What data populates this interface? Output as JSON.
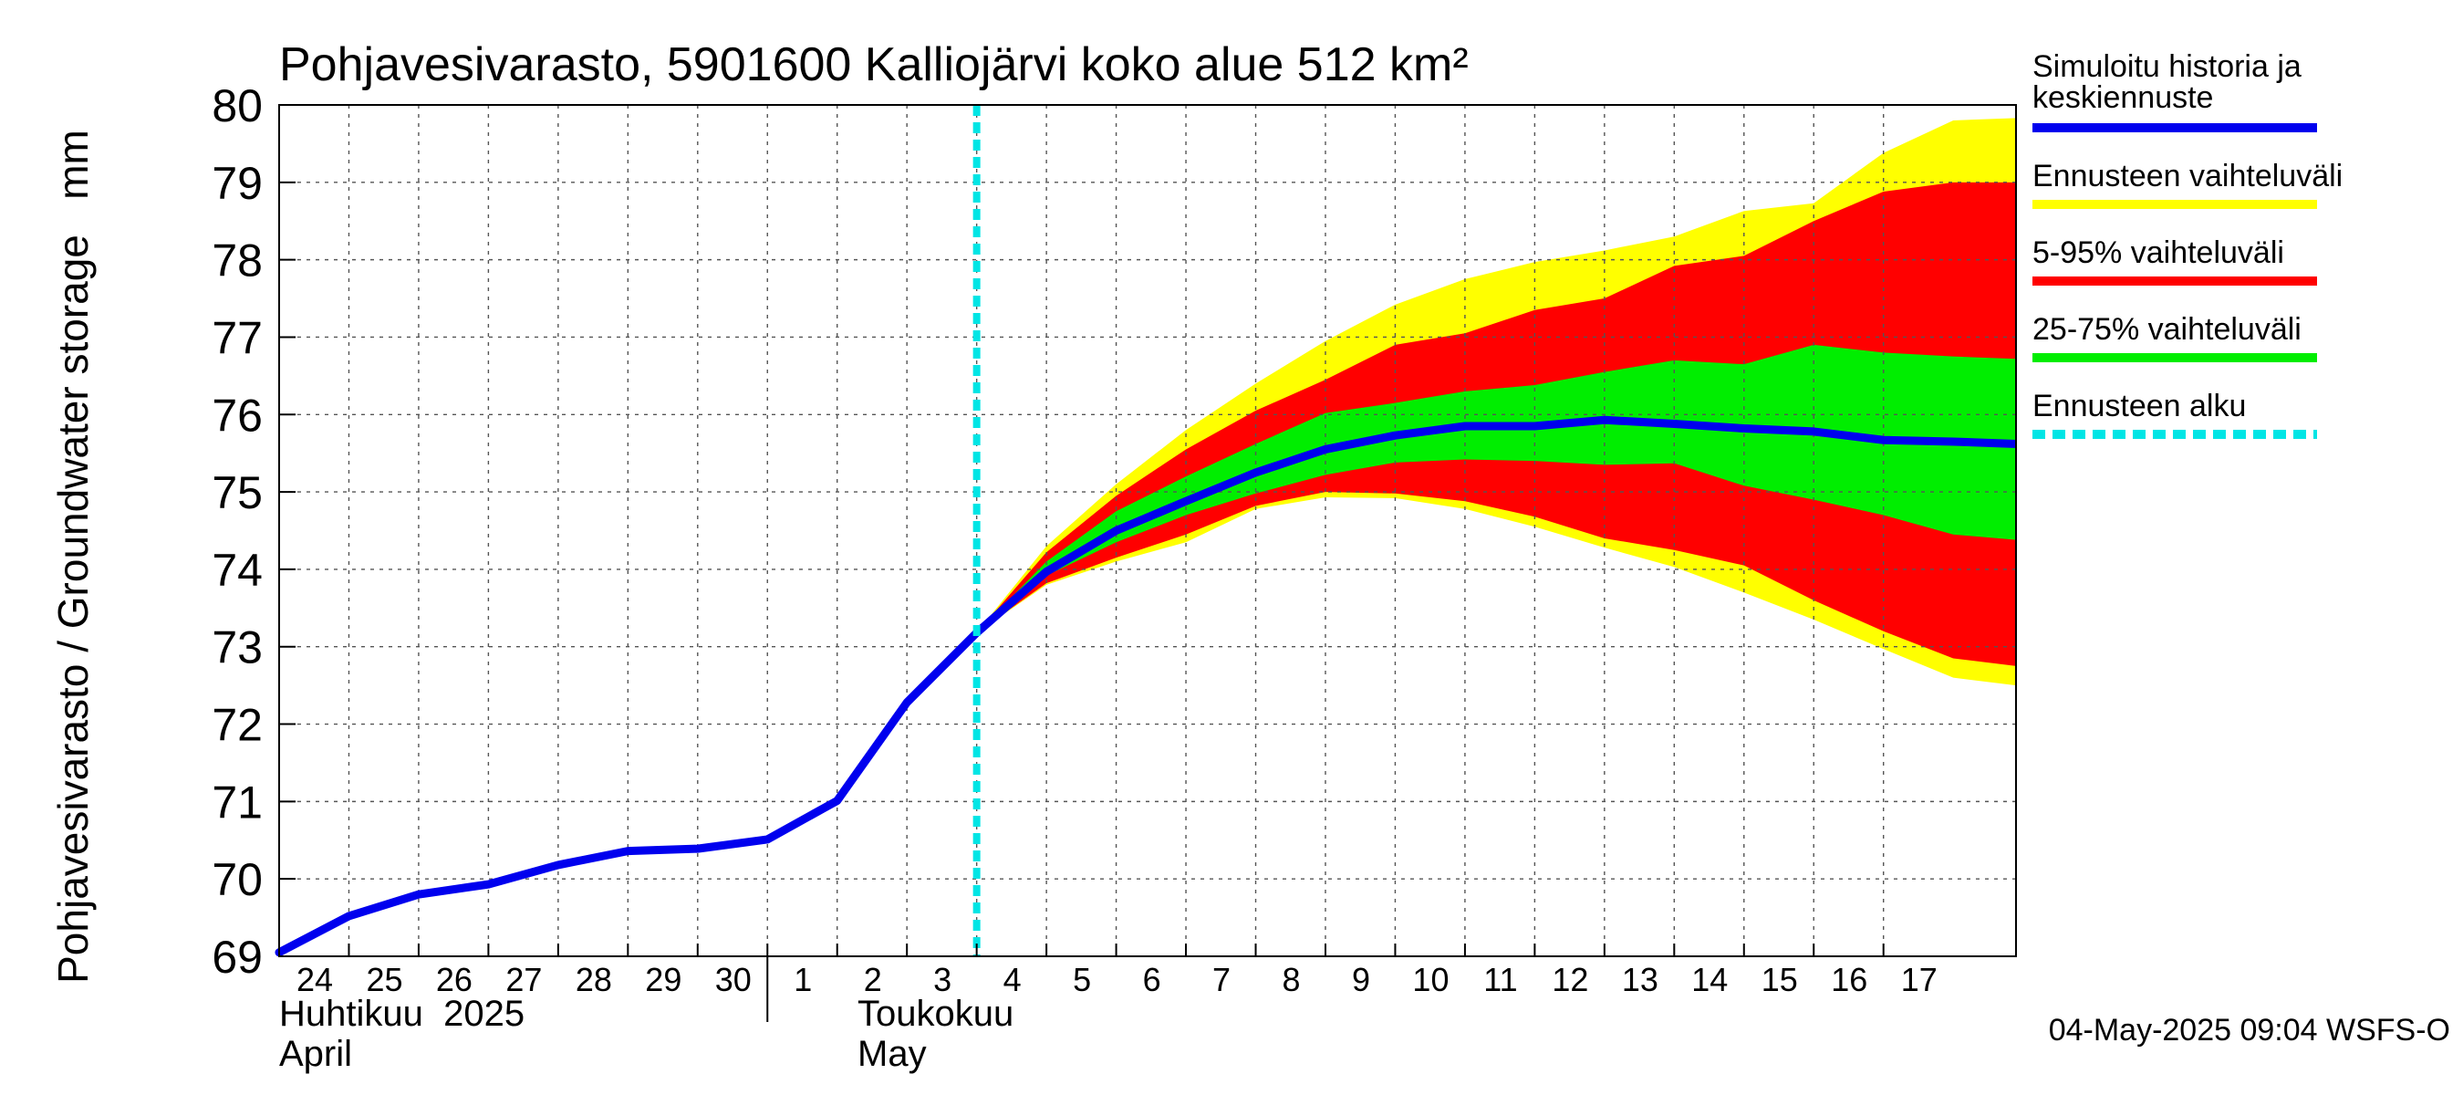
{
  "chart_data": {
    "type": "area",
    "title": "Pohjavesivarasto, 5901600 Kalliojärvi koko alue 512 km²",
    "ylabel": "Pohjavesivarasto / Groundwater storage   mm",
    "ylim": [
      69,
      80
    ],
    "yticks": [
      69,
      70,
      71,
      72,
      73,
      74,
      75,
      76,
      77,
      78,
      79,
      80
    ],
    "x_range_days": [
      0,
      24.9
    ],
    "x_ticks": [
      {
        "d": 0,
        "label": "24"
      },
      {
        "d": 1,
        "label": "25"
      },
      {
        "d": 2,
        "label": "26"
      },
      {
        "d": 3,
        "label": "27"
      },
      {
        "d": 4,
        "label": "28"
      },
      {
        "d": 5,
        "label": "29"
      },
      {
        "d": 6,
        "label": "30"
      },
      {
        "d": 7,
        "label": "1"
      },
      {
        "d": 8,
        "label": "2"
      },
      {
        "d": 9,
        "label": "3"
      },
      {
        "d": 10,
        "label": "4"
      },
      {
        "d": 11,
        "label": "5"
      },
      {
        "d": 12,
        "label": "6"
      },
      {
        "d": 13,
        "label": "7"
      },
      {
        "d": 14,
        "label": "8"
      },
      {
        "d": 15,
        "label": "9"
      },
      {
        "d": 16,
        "label": "10"
      },
      {
        "d": 17,
        "label": "11"
      },
      {
        "d": 18,
        "label": "12"
      },
      {
        "d": 19,
        "label": "13"
      },
      {
        "d": 20,
        "label": "14"
      },
      {
        "d": 21,
        "label": "15"
      },
      {
        "d": 22,
        "label": "16"
      },
      {
        "d": 23,
        "label": "17"
      }
    ],
    "month_labels": {
      "april_fi": "Huhtikuu  2025",
      "april_en": "April",
      "may_fi": "Toukokuu",
      "may_en": "May"
    },
    "forecast_start_day": 10.0,
    "history": {
      "name": "Simuloitu historia ja keskiennuste",
      "color": "#0000ee",
      "x": [
        0,
        1,
        2,
        3,
        4,
        5,
        6,
        7,
        8,
        9,
        10
      ],
      "y": [
        69.05,
        69.52,
        69.8,
        69.93,
        70.18,
        70.36,
        70.39,
        70.51,
        71.01,
        72.28,
        73.18
      ]
    },
    "forecast_x": [
      10,
      11,
      12,
      13,
      14,
      15,
      16,
      17,
      18,
      19,
      20,
      21,
      22,
      23,
      24,
      24.9
    ],
    "series": [
      {
        "name": "Ennusteen vaihteluväli",
        "color": "#ffff00",
        "upper": [
          73.18,
          74.3,
          75.1,
          75.8,
          76.4,
          76.95,
          77.42,
          77.75,
          77.97,
          78.12,
          78.3,
          78.63,
          78.73,
          79.38,
          79.8,
          79.83
        ],
        "lower": [
          73.18,
          73.8,
          74.1,
          74.35,
          74.78,
          74.93,
          74.92,
          74.78,
          74.55,
          74.28,
          74.03,
          73.7,
          73.35,
          72.97,
          72.6,
          72.5
        ]
      },
      {
        "name": "5-95% vaihteluväli",
        "color": "#ff0000",
        "upper": [
          73.18,
          74.22,
          74.95,
          75.55,
          76.05,
          76.45,
          76.9,
          77.05,
          77.35,
          77.5,
          77.92,
          78.05,
          78.5,
          78.88,
          79.0,
          79.0
        ],
        "lower": [
          73.18,
          73.82,
          74.15,
          74.45,
          74.82,
          75.0,
          74.98,
          74.88,
          74.68,
          74.4,
          74.25,
          74.05,
          73.6,
          73.2,
          72.85,
          72.75
        ]
      },
      {
        "name": "25-75% vaihteluväli",
        "color": "#00ee00",
        "upper": [
          73.18,
          74.1,
          74.75,
          75.2,
          75.62,
          76.02,
          76.15,
          76.3,
          76.38,
          76.55,
          76.7,
          76.65,
          76.9,
          76.8,
          76.75,
          76.72
        ],
        "lower": [
          73.18,
          73.92,
          74.35,
          74.7,
          74.98,
          75.22,
          75.38,
          75.42,
          75.4,
          75.35,
          75.37,
          75.08,
          74.9,
          74.7,
          74.45,
          74.38
        ]
      },
      {
        "name": "Keskiennuste",
        "color": "#0000ee",
        "values": [
          73.18,
          73.97,
          74.5,
          74.88,
          75.25,
          75.55,
          75.73,
          75.85,
          75.85,
          75.93,
          75.88,
          75.82,
          75.78,
          75.67,
          75.65,
          75.62
        ]
      }
    ],
    "legend": [
      {
        "label": "Simuloitu historia ja",
        "label2": "keskiennuste",
        "color": "#0000ee",
        "style": "solid"
      },
      {
        "label": "Ennusteen vaihteluväli",
        "color": "#ffff00",
        "style": "solid"
      },
      {
        "label": "5-95% vaihteluväli",
        "color": "#ff0000",
        "style": "solid"
      },
      {
        "label": "25-75% vaihteluväli",
        "color": "#00ee00",
        "style": "solid"
      },
      {
        "label": "Ennusteen alku",
        "color": "#00e5e5",
        "style": "dashed"
      }
    ],
    "legend_position": "right",
    "grid": true,
    "timestamp": "04-May-2025 09:04 WSFS-O"
  }
}
